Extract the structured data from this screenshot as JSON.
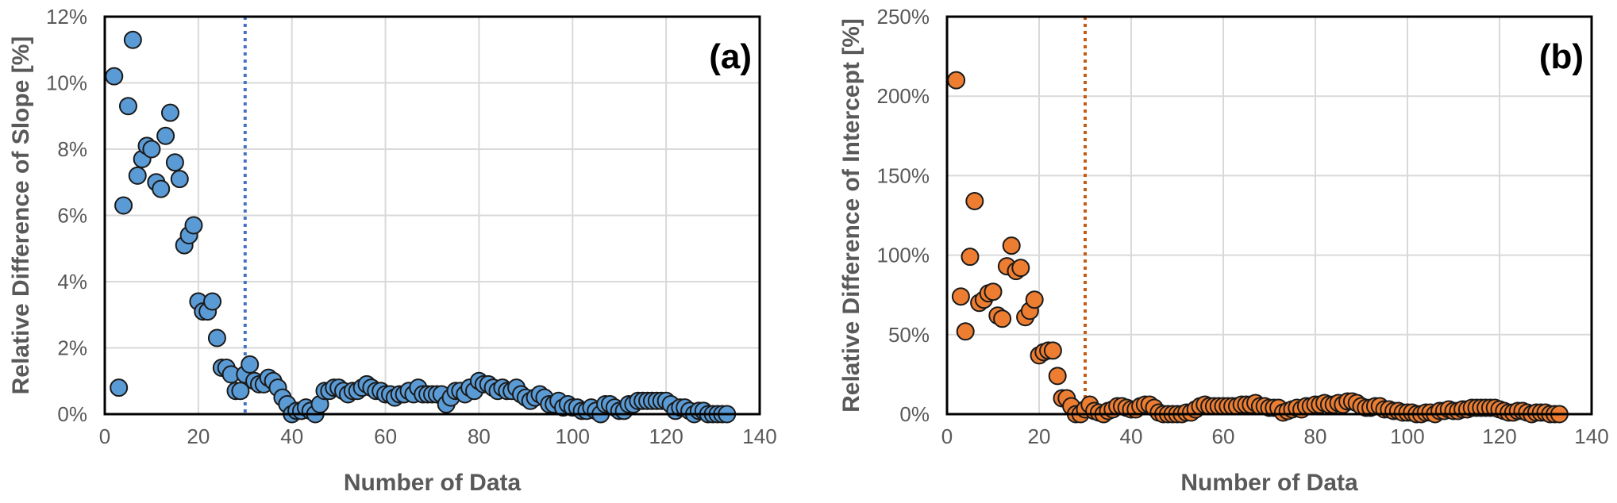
{
  "chart_data": [
    {
      "type": "scatter",
      "panel_label": "(a)",
      "xlabel": "Number of Data",
      "ylabel": "Relative Difference of Slope [%]",
      "xlim": [
        0,
        140
      ],
      "ylim": [
        0,
        12
      ],
      "x_ticks": [
        0,
        20,
        40,
        60,
        80,
        100,
        120,
        140
      ],
      "y_ticks": [
        0,
        2,
        4,
        6,
        8,
        10,
        12
      ],
      "y_tick_labels": [
        "0%",
        "2%",
        "4%",
        "6%",
        "8%",
        "10%",
        "12%"
      ],
      "grid": true,
      "marker_color": "#5b9bd5",
      "reference_line": {
        "x": 30,
        "color": "#4472c4",
        "style": "dotted"
      },
      "series": [
        {
          "x": [
            2,
            3,
            4,
            5,
            6,
            7,
            8,
            9,
            10,
            11,
            12,
            13,
            14,
            15,
            16,
            17,
            18,
            19,
            20,
            21,
            22,
            23,
            24,
            25,
            26,
            27,
            28,
            29,
            30,
            31,
            32,
            33,
            34,
            35,
            36,
            37,
            38,
            39,
            40,
            41,
            42,
            43,
            44,
            45,
            46,
            47,
            48,
            49,
            50,
            51,
            52,
            53,
            54,
            55,
            56,
            57,
            58,
            59,
            60,
            61,
            62,
            63,
            64,
            65,
            66,
            67,
            68,
            69,
            70,
            71,
            72,
            73,
            74,
            75,
            76,
            77,
            78,
            79,
            80,
            81,
            82,
            83,
            84,
            85,
            86,
            87,
            88,
            89,
            90,
            91,
            92,
            93,
            94,
            95,
            96,
            97,
            98,
            99,
            100,
            101,
            102,
            103,
            104,
            105,
            106,
            107,
            108,
            109,
            110,
            111,
            112,
            113,
            114,
            115,
            116,
            117,
            118,
            119,
            120,
            121,
            122,
            123,
            124,
            125,
            126,
            127,
            128,
            129,
            130,
            131,
            132,
            133
          ],
          "y": [
            10.2,
            0.8,
            6.3,
            9.3,
            11.3,
            7.2,
            7.7,
            8.1,
            8.0,
            7.0,
            6.8,
            8.4,
            9.1,
            7.6,
            7.1,
            5.1,
            5.4,
            5.7,
            3.4,
            3.1,
            3.1,
            3.4,
            2.3,
            1.4,
            1.4,
            1.2,
            0.7,
            0.7,
            1.2,
            1.5,
            1.0,
            0.9,
            0.9,
            1.1,
            1.0,
            0.8,
            0.5,
            0.3,
            0.0,
            0.1,
            0.1,
            0.2,
            0.1,
            0.0,
            0.3,
            0.7,
            0.7,
            0.8,
            0.8,
            0.7,
            0.6,
            0.7,
            0.7,
            0.8,
            0.9,
            0.8,
            0.7,
            0.7,
            0.6,
            0.6,
            0.5,
            0.6,
            0.6,
            0.7,
            0.6,
            0.8,
            0.6,
            0.6,
            0.6,
            0.6,
            0.6,
            0.3,
            0.5,
            0.7,
            0.7,
            0.6,
            0.8,
            0.7,
            1.0,
            0.9,
            0.9,
            0.8,
            0.7,
            0.8,
            0.7,
            0.7,
            0.8,
            0.6,
            0.5,
            0.4,
            0.5,
            0.6,
            0.5,
            0.3,
            0.3,
            0.4,
            0.2,
            0.3,
            0.2,
            0.2,
            0.1,
            0.1,
            0.2,
            0.1,
            0.0,
            0.3,
            0.3,
            0.2,
            0.1,
            0.1,
            0.3,
            0.3,
            0.4,
            0.4,
            0.4,
            0.4,
            0.4,
            0.4,
            0.4,
            0.3,
            0.1,
            0.2,
            0.2,
            0.1,
            0.0,
            0.1,
            0.1,
            0.0,
            0.0,
            0.0,
            0.0,
            0.0
          ]
        }
      ]
    },
    {
      "type": "scatter",
      "panel_label": "(b)",
      "xlabel": "Number of Data",
      "ylabel": "Relative Difference of Intercept [%]",
      "xlim": [
        0,
        140
      ],
      "ylim": [
        0,
        250
      ],
      "x_ticks": [
        0,
        20,
        40,
        60,
        80,
        100,
        120,
        140
      ],
      "y_ticks": [
        0,
        50,
        100,
        150,
        200,
        250
      ],
      "y_tick_labels": [
        "0%",
        "50%",
        "100%",
        "150%",
        "200%",
        "250%"
      ],
      "grid": true,
      "marker_color": "#ed7d31",
      "reference_line": {
        "x": 30,
        "color": "#c55a11",
        "style": "dotted"
      },
      "series": [
        {
          "x": [
            2,
            3,
            4,
            5,
            6,
            7,
            8,
            9,
            10,
            11,
            12,
            13,
            14,
            15,
            16,
            17,
            18,
            19,
            20,
            21,
            22,
            23,
            24,
            25,
            26,
            27,
            28,
            29,
            30,
            31,
            32,
            33,
            34,
            35,
            36,
            37,
            38,
            39,
            40,
            41,
            42,
            43,
            44,
            45,
            46,
            47,
            48,
            49,
            50,
            51,
            52,
            53,
            54,
            55,
            56,
            57,
            58,
            59,
            60,
            61,
            62,
            63,
            64,
            65,
            66,
            67,
            68,
            69,
            70,
            71,
            72,
            73,
            74,
            75,
            76,
            77,
            78,
            79,
            80,
            81,
            82,
            83,
            84,
            85,
            86,
            87,
            88,
            89,
            90,
            91,
            92,
            93,
            94,
            95,
            96,
            97,
            98,
            99,
            100,
            101,
            102,
            103,
            104,
            105,
            106,
            107,
            108,
            109,
            110,
            111,
            112,
            113,
            114,
            115,
            116,
            117,
            118,
            119,
            120,
            121,
            122,
            123,
            124,
            125,
            126,
            127,
            128,
            129,
            130,
            131,
            132,
            133
          ],
          "y": [
            210,
            74,
            52,
            99,
            134,
            70,
            72,
            76,
            77,
            62,
            60,
            93,
            106,
            90,
            92,
            61,
            65,
            72,
            37,
            39,
            40,
            40,
            24,
            10,
            10,
            5,
            0,
            0,
            3,
            6,
            2,
            1,
            0,
            2,
            3,
            5,
            5,
            4,
            3,
            3,
            5,
            6,
            6,
            4,
            1,
            0,
            0,
            0,
            0,
            0,
            1,
            1,
            3,
            5,
            6,
            5,
            5,
            5,
            5,
            5,
            5,
            5,
            6,
            6,
            6,
            7,
            5,
            5,
            4,
            4,
            4,
            1,
            2,
            3,
            4,
            3,
            5,
            5,
            6,
            6,
            7,
            6,
            6,
            7,
            6,
            8,
            8,
            7,
            5,
            4,
            4,
            5,
            5,
            3,
            3,
            2,
            2,
            1,
            1,
            1,
            0,
            0,
            1,
            1,
            0,
            2,
            2,
            3,
            2,
            2,
            3,
            3,
            4,
            4,
            4,
            4,
            4,
            4,
            3,
            2,
            1,
            1,
            2,
            2,
            1,
            0,
            1,
            1,
            1,
            0,
            0,
            0
          ]
        }
      ]
    }
  ]
}
